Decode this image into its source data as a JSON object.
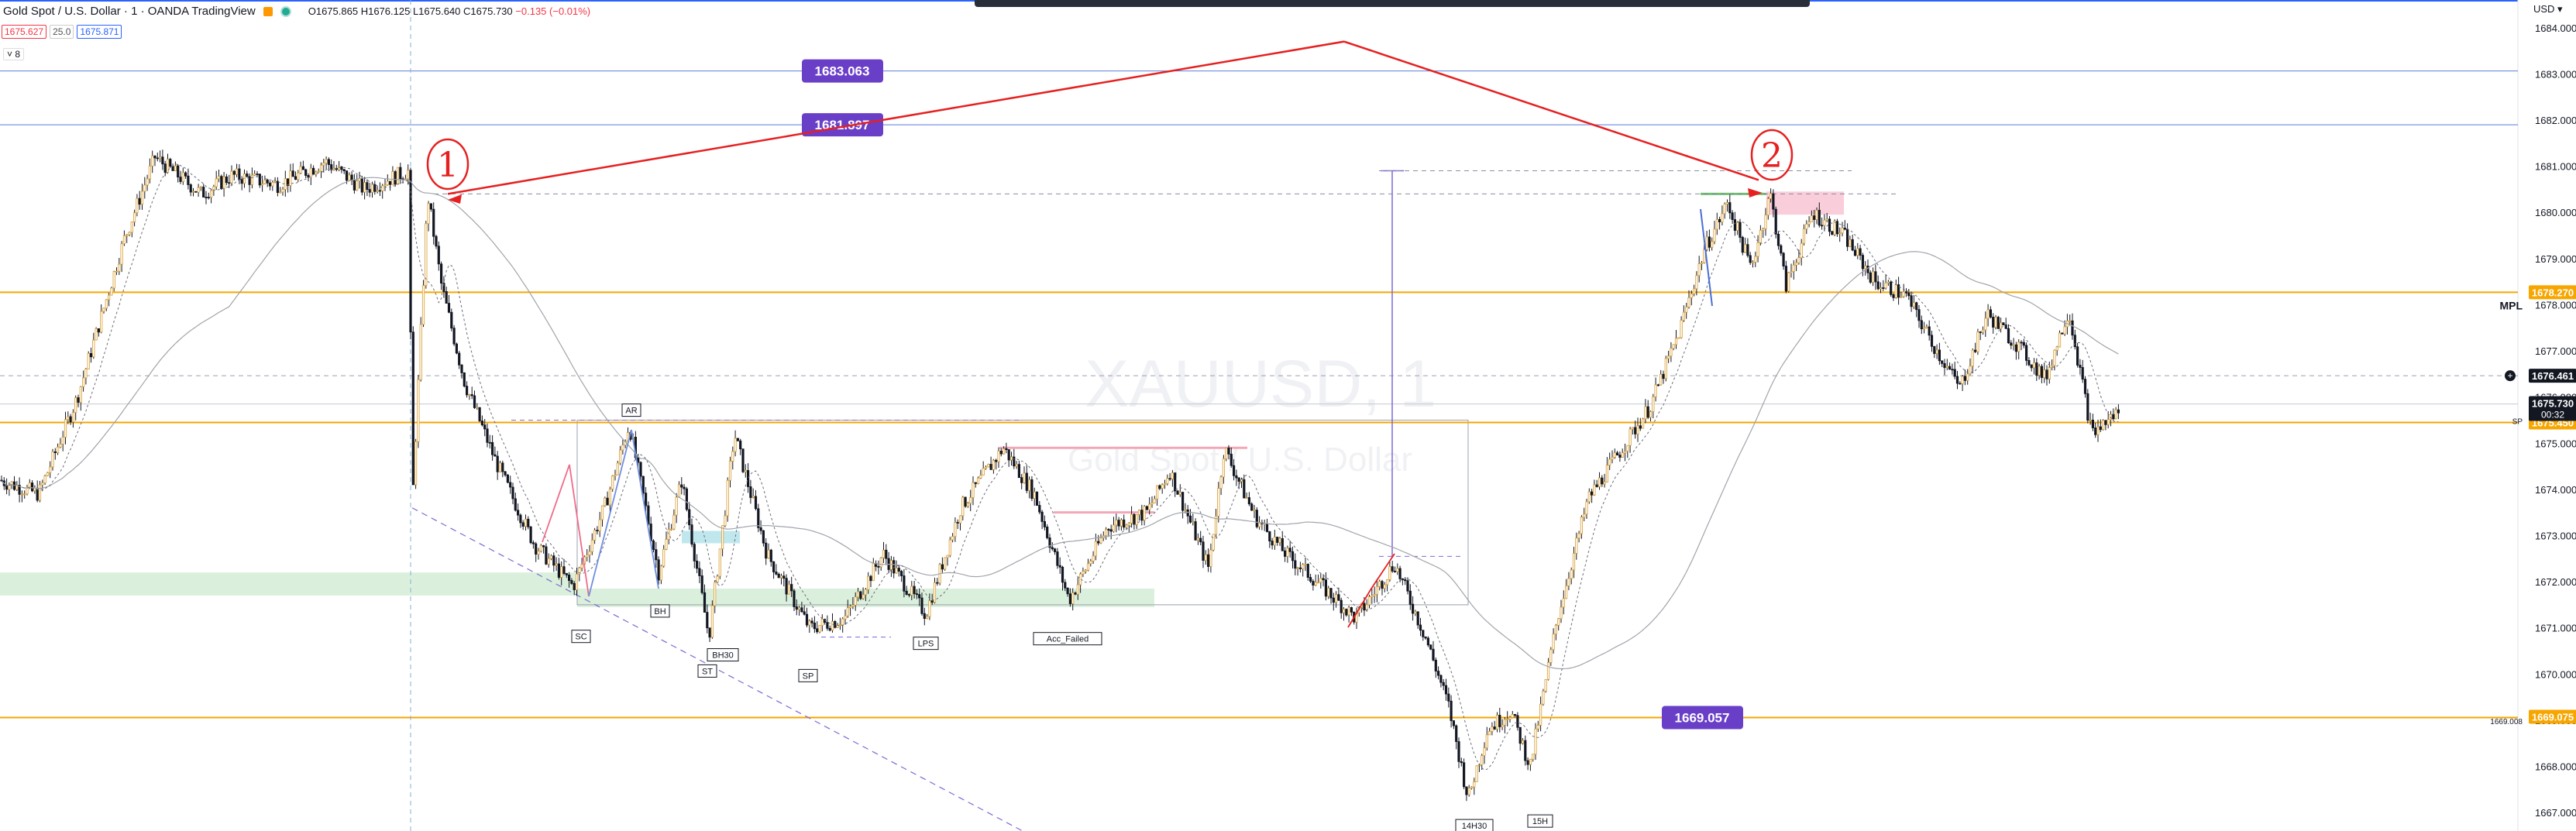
{
  "header": {
    "symbol": "Gold Spot / U.S. Dollar",
    "interval": "1",
    "broker": "OANDA",
    "platform": "TradingView",
    "open": "O1675.865",
    "high": "H1676.125",
    "low": "L1675.640",
    "close": "C1675.730",
    "change": "−0.135 (−0.01%)",
    "bid": "1675.627",
    "spread": "25.0",
    "ask": "1675.871",
    "collapse_label": "˅ 8"
  },
  "colors": {
    "up": "#131722",
    "down": "#131722",
    "accent": "#2962ff",
    "orange_line": "#f7a600",
    "purple_label": "#6a3fc8",
    "red_annotation": "#e62020"
  },
  "chart_data": {
    "type": "candlestick",
    "symbol": "XAUUSD, 1",
    "watermark_title": "XAUUSD, 1",
    "watermark_subtitle": "Gold Spot / U.S. Dollar",
    "currency_label": "USD",
    "ylim": [
      1666.6,
      1684.6
    ],
    "y_ticks": [
      "1684.000",
      "1683.000",
      "1682.000",
      "1681.000",
      "1680.000",
      "1679.000",
      "1678.000",
      "1677.000",
      "1676.000",
      "1675.000",
      "1674.000",
      "1673.000",
      "1672.000",
      "1671.000",
      "1670.000",
      "1669.000",
      "1668.000",
      "1667.000"
    ],
    "axis_labels": {
      "mpl": "MPL",
      "orange_top": "1678.270",
      "current_price": "1675.730",
      "countdown": "00:32",
      "price_line": "1676.461",
      "sp": "SP",
      "sp_value": "1675.450",
      "bottom_orange": "1669.075",
      "bottom_small": "1669.008"
    },
    "horizontal_levels": [
      {
        "price": 1683.063,
        "label": "1683.063",
        "color": "#5b7bdc"
      },
      {
        "price": 1681.897,
        "label": "1681.897",
        "color": "#5b7bdc"
      },
      {
        "price": 1678.27,
        "label": "",
        "color": "#f7a600"
      },
      {
        "price": 1675.45,
        "label": "",
        "color": "#f7a600"
      },
      {
        "price": 1669.057,
        "label": "1669.057",
        "color": "#f7a600"
      }
    ],
    "key_points": [
      {
        "x": 0,
        "price": 1674.2
      },
      {
        "x": 50,
        "price": 1673.9
      },
      {
        "x": 100,
        "price": 1676.0
      },
      {
        "x": 160,
        "price": 1679.4
      },
      {
        "x": 200,
        "price": 1681.2
      },
      {
        "x": 260,
        "price": 1680.4
      },
      {
        "x": 300,
        "price": 1680.8
      },
      {
        "x": 360,
        "price": 1680.6
      },
      {
        "x": 420,
        "price": 1681.1
      },
      {
        "x": 470,
        "price": 1680.5
      },
      {
        "x": 528,
        "price": 1680.9
      },
      {
        "x": 532,
        "price": 1673.6
      },
      {
        "x": 552,
        "price": 1680.4
      },
      {
        "x": 570,
        "price": 1678.4
      },
      {
        "x": 600,
        "price": 1676.3
      },
      {
        "x": 640,
        "price": 1674.6
      },
      {
        "x": 690,
        "price": 1672.8
      },
      {
        "x": 740,
        "price": 1671.9
      },
      {
        "x": 780,
        "price": 1673.6
      },
      {
        "x": 812,
        "price": 1675.4
      },
      {
        "x": 850,
        "price": 1672.2
      },
      {
        "x": 880,
        "price": 1674.2
      },
      {
        "x": 915,
        "price": 1670.8
      },
      {
        "x": 948,
        "price": 1675.2
      },
      {
        "x": 990,
        "price": 1672.6
      },
      {
        "x": 1045,
        "price": 1671.0
      },
      {
        "x": 1090,
        "price": 1671.2
      },
      {
        "x": 1140,
        "price": 1672.6
      },
      {
        "x": 1195,
        "price": 1671.3
      },
      {
        "x": 1240,
        "price": 1673.6
      },
      {
        "x": 1295,
        "price": 1674.9
      },
      {
        "x": 1335,
        "price": 1673.9
      },
      {
        "x": 1380,
        "price": 1671.6
      },
      {
        "x": 1430,
        "price": 1673.2
      },
      {
        "x": 1480,
        "price": 1673.5
      },
      {
        "x": 1510,
        "price": 1674.4
      },
      {
        "x": 1560,
        "price": 1672.3
      },
      {
        "x": 1580,
        "price": 1674.9
      },
      {
        "x": 1620,
        "price": 1673.4
      },
      {
        "x": 1660,
        "price": 1672.6
      },
      {
        "x": 1700,
        "price": 1672.0
      },
      {
        "x": 1750,
        "price": 1671.2
      },
      {
        "x": 1800,
        "price": 1672.4
      },
      {
        "x": 1840,
        "price": 1670.8
      },
      {
        "x": 1870,
        "price": 1669.3
      },
      {
        "x": 1895,
        "price": 1667.3
      },
      {
        "x": 1920,
        "price": 1668.8
      },
      {
        "x": 1950,
        "price": 1669.2
      },
      {
        "x": 1975,
        "price": 1668.0
      },
      {
        "x": 2010,
        "price": 1671.2
      },
      {
        "x": 2050,
        "price": 1673.8
      },
      {
        "x": 2090,
        "price": 1674.8
      },
      {
        "x": 2130,
        "price": 1675.8
      },
      {
        "x": 2165,
        "price": 1677.3
      },
      {
        "x": 2200,
        "price": 1679.2
      },
      {
        "x": 2230,
        "price": 1680.2
      },
      {
        "x": 2260,
        "price": 1678.8
      },
      {
        "x": 2285,
        "price": 1680.4
      },
      {
        "x": 2305,
        "price": 1678.4
      },
      {
        "x": 2340,
        "price": 1680.0
      },
      {
        "x": 2380,
        "price": 1679.5
      },
      {
        "x": 2420,
        "price": 1678.5
      },
      {
        "x": 2460,
        "price": 1678.2
      },
      {
        "x": 2500,
        "price": 1677.0
      },
      {
        "x": 2530,
        "price": 1676.2
      },
      {
        "x": 2565,
        "price": 1677.8
      },
      {
        "x": 2600,
        "price": 1677.2
      },
      {
        "x": 2640,
        "price": 1676.4
      },
      {
        "x": 2670,
        "price": 1677.9
      },
      {
        "x": 2700,
        "price": 1675.2
      },
      {
        "x": 2735,
        "price": 1675.7
      }
    ],
    "annotations": [
      {
        "text": "SC",
        "x": 750,
        "price": 1670.95
      },
      {
        "text": "AR",
        "x": 815,
        "price": 1675.85
      },
      {
        "text": "BH",
        "x": 852,
        "price": 1671.5
      },
      {
        "text": "BH30",
        "x": 933,
        "price": 1670.55
      },
      {
        "text": "ST",
        "x": 913,
        "price": 1670.2
      },
      {
        "text": "SP",
        "x": 1043,
        "price": 1670.1
      },
      {
        "text": "LPS",
        "x": 1195,
        "price": 1670.8
      },
      {
        "text": "Acc_Failed",
        "x": 1378,
        "price": 1670.9
      },
      {
        "text": "14H30",
        "x": 1903,
        "price": 1666.85
      },
      {
        "text": "15H",
        "x": 1988,
        "price": 1666.95
      }
    ],
    "drawings": {
      "circle_labels": [
        "1",
        "2"
      ]
    }
  }
}
